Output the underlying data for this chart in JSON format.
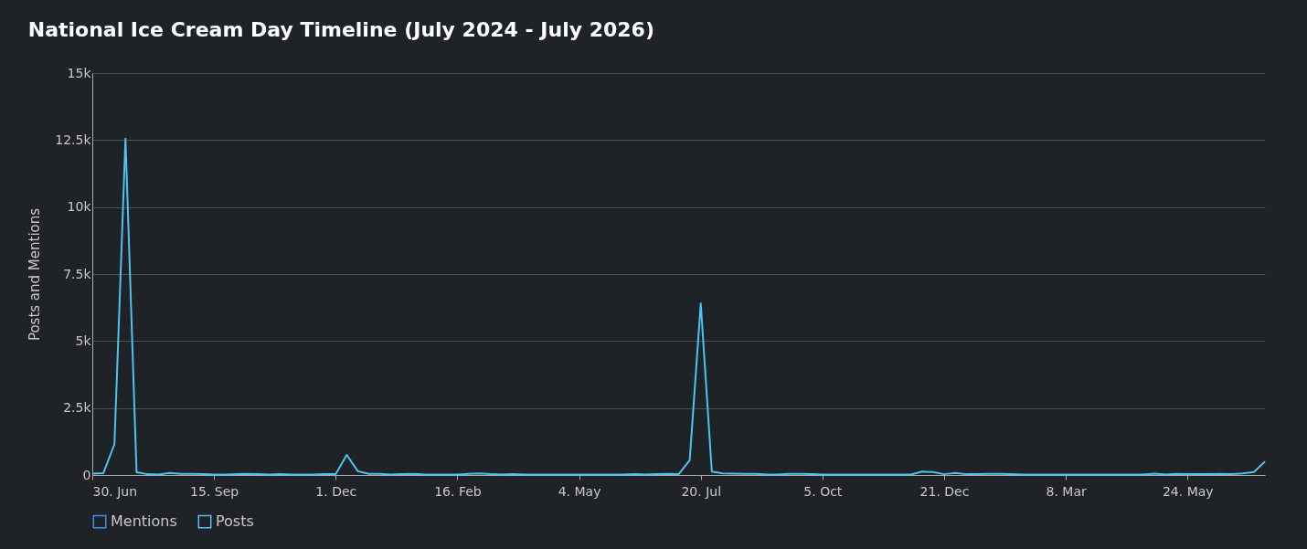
{
  "chart_data": {
    "type": "line",
    "title": "National Ice Cream Day Timeline (July 2024 - July 2026)",
    "ylabel": "Posts and Mentions",
    "x": [
      "2024-06-30",
      "2024-07-07",
      "2024-07-14",
      "2024-07-21",
      "2024-07-28",
      "2024-08-04",
      "2024-08-11",
      "2024-08-18",
      "2024-08-25",
      "2024-09-01",
      "2024-09-08",
      "2024-09-15",
      "2024-09-22",
      "2024-09-29",
      "2024-10-06",
      "2024-10-13",
      "2024-10-20",
      "2024-10-27",
      "2024-11-03",
      "2024-11-10",
      "2024-11-17",
      "2024-11-24",
      "2024-12-01",
      "2024-12-08",
      "2024-12-15",
      "2024-12-22",
      "2024-12-29",
      "2025-01-05",
      "2025-01-12",
      "2025-01-19",
      "2025-01-26",
      "2025-02-02",
      "2025-02-09",
      "2025-02-16",
      "2025-02-23",
      "2025-03-02",
      "2025-03-09",
      "2025-03-16",
      "2025-03-23",
      "2025-03-30",
      "2025-04-06",
      "2025-04-13",
      "2025-04-20",
      "2025-04-27",
      "2025-05-04",
      "2025-05-11",
      "2025-05-18",
      "2025-05-25",
      "2025-06-01",
      "2025-06-08",
      "2025-06-15",
      "2025-06-22",
      "2025-06-29",
      "2025-07-06",
      "2025-07-13",
      "2025-07-20",
      "2025-07-27",
      "2025-08-03",
      "2025-08-10",
      "2025-08-17",
      "2025-08-24",
      "2025-08-31",
      "2025-09-07",
      "2025-09-14",
      "2025-09-21",
      "2025-09-28",
      "2025-10-05",
      "2025-10-12",
      "2025-10-19",
      "2025-10-26",
      "2025-11-02",
      "2025-11-09",
      "2025-11-16",
      "2025-11-23",
      "2025-11-30",
      "2025-12-07",
      "2025-12-14",
      "2025-12-21",
      "2025-12-28",
      "2026-01-04",
      "2026-01-11",
      "2026-01-18",
      "2026-01-25",
      "2026-02-01",
      "2026-02-08",
      "2026-02-15",
      "2026-02-22",
      "2026-03-01",
      "2026-03-08",
      "2026-03-15",
      "2026-03-22",
      "2026-03-29",
      "2026-04-05",
      "2026-04-12",
      "2026-04-19",
      "2026-04-26",
      "2026-05-03",
      "2026-05-10",
      "2026-05-17",
      "2026-05-24",
      "2026-05-31",
      "2026-06-07",
      "2026-06-14",
      "2026-06-21",
      "2026-06-28",
      "2026-07-05",
      "2026-07-12"
    ],
    "series": [
      {
        "name": "Mentions",
        "color": "#3d8fe0",
        "values": [
          null,
          null,
          null,
          null,
          null,
          null,
          null,
          null,
          null,
          null,
          null,
          null,
          null,
          null,
          null,
          null,
          null,
          null,
          null,
          null,
          null,
          null,
          null,
          null,
          null,
          null,
          null,
          null,
          null,
          null,
          null,
          null,
          null,
          null,
          null,
          null,
          null,
          null,
          null,
          null,
          null,
          null,
          null,
          null,
          null,
          null,
          null,
          null,
          null,
          null,
          null,
          null,
          null,
          null,
          null,
          null,
          null,
          null,
          null,
          null,
          null,
          null,
          null,
          null,
          null,
          null,
          null,
          null,
          null,
          null,
          null,
          null,
          null,
          null,
          null,
          null,
          null,
          null,
          null,
          null,
          null,
          null,
          null,
          null,
          null,
          null,
          null,
          null,
          null,
          null,
          null,
          null,
          null,
          null,
          null,
          null,
          null,
          null,
          null,
          null,
          null,
          null,
          null,
          null,
          null,
          null,
          null
        ]
      },
      {
        "name": "Posts",
        "color": "#4cc4ee",
        "values": [
          50,
          70,
          1150,
          12550,
          100,
          30,
          20,
          80,
          40,
          40,
          30,
          20,
          20,
          30,
          40,
          30,
          20,
          30,
          20,
          20,
          20,
          30,
          30,
          750,
          140,
          40,
          40,
          20,
          30,
          40,
          20,
          20,
          20,
          20,
          40,
          60,
          30,
          20,
          30,
          20,
          20,
          20,
          20,
          20,
          20,
          20,
          20,
          20,
          20,
          30,
          20,
          30,
          40,
          30,
          550,
          6400,
          130,
          60,
          50,
          40,
          40,
          20,
          20,
          40,
          40,
          30,
          20,
          20,
          20,
          20,
          20,
          20,
          20,
          20,
          20,
          130,
          110,
          30,
          80,
          30,
          30,
          40,
          40,
          30,
          20,
          20,
          20,
          20,
          20,
          20,
          20,
          20,
          20,
          20,
          20,
          20,
          50,
          20,
          40,
          30,
          30,
          30,
          40,
          30,
          60,
          110,
          500
        ]
      }
    ],
    "xlim": [
      "2024-06-30",
      "2026-07-12"
    ],
    "xticks": [
      {
        "value": "2024-06-30",
        "label": "30. Jun"
      },
      {
        "value": "2024-09-15",
        "label": "15. Sep"
      },
      {
        "value": "2024-12-01",
        "label": "1. Dec"
      },
      {
        "value": "2025-02-16",
        "label": "16. Feb"
      },
      {
        "value": "2025-05-04",
        "label": "4. May"
      },
      {
        "value": "2025-07-20",
        "label": "20. Jul"
      },
      {
        "value": "2025-10-05",
        "label": "5. Oct"
      },
      {
        "value": "2025-12-21",
        "label": "21. Dec"
      },
      {
        "value": "2026-03-08",
        "label": "8. Mar"
      },
      {
        "value": "2026-05-24",
        "label": "24. May"
      }
    ],
    "ylim": [
      0,
      15000
    ],
    "yticks": [
      0,
      {
        "value": 2500,
        "label": "2.5k"
      },
      {
        "value": 5000,
        "label": "5k"
      },
      {
        "value": 7500,
        "label": "7.5k"
      },
      {
        "value": 10000,
        "label": "10k"
      },
      {
        "value": 12500,
        "label": "12.5k"
      },
      {
        "value": 15000,
        "label": "15k"
      }
    ],
    "grid": "y",
    "legend": "bottom",
    "marker": "none",
    "line_style": "solid"
  }
}
